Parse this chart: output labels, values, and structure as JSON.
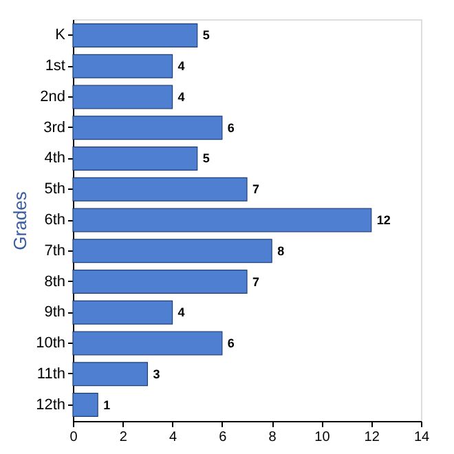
{
  "chart_data": {
    "type": "bar",
    "orientation": "horizontal",
    "ylabel": "Grades",
    "categories": [
      "K",
      "1st",
      "2nd",
      "3rd",
      "4th",
      "5th",
      "6th",
      "7th",
      "8th",
      "9th",
      "10th",
      "11th",
      "12th"
    ],
    "values": [
      5,
      4,
      4,
      6,
      5,
      7,
      12,
      8,
      7,
      4,
      6,
      3,
      1
    ],
    "color": "#4f7fd0",
    "xlim": [
      0,
      14
    ],
    "xticks": [
      0,
      2,
      4,
      6,
      8,
      10,
      12,
      14
    ],
    "grid": false,
    "data_labels": true
  }
}
